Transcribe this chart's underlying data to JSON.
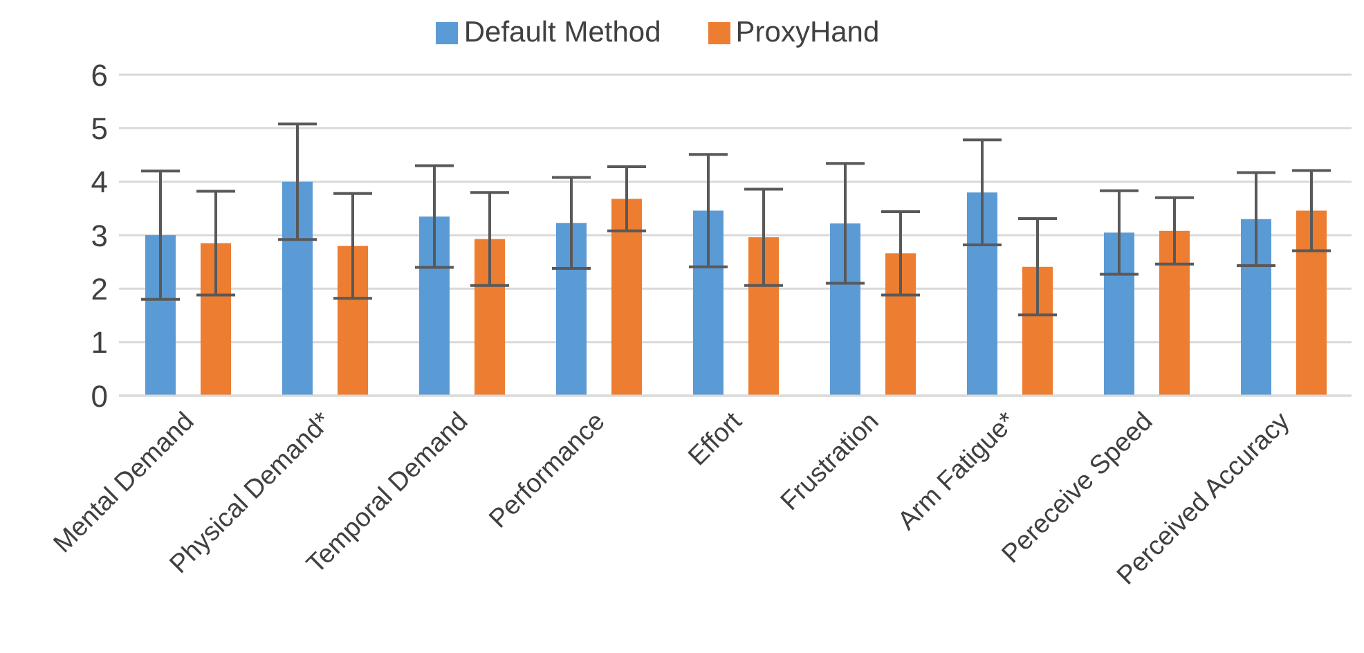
{
  "chart_data": {
    "type": "bar",
    "categories": [
      "Mental Demand",
      "Physical Demand*",
      "Temporal Demand",
      "Performance",
      "Effort",
      "Frustration",
      "Arm Fatigue*",
      "Pereceive Speed",
      "Perceived Accuracy"
    ],
    "series": [
      {
        "name": "Default Method",
        "color": "#5b9bd5",
        "values": [
          3.0,
          4.0,
          3.35,
          3.23,
          3.46,
          3.22,
          3.8,
          3.05,
          3.3
        ],
        "errors": [
          1.2,
          1.08,
          0.95,
          0.85,
          1.05,
          1.12,
          0.98,
          0.78,
          0.87
        ]
      },
      {
        "name": "ProxyHand",
        "color": "#ed7d31",
        "values": [
          2.85,
          2.8,
          2.93,
          3.68,
          2.96,
          2.66,
          2.41,
          3.08,
          3.46
        ],
        "errors": [
          0.97,
          0.98,
          0.87,
          0.6,
          0.9,
          0.78,
          0.9,
          0.62,
          0.75
        ]
      }
    ],
    "ylim": [
      0,
      6
    ],
    "yticks": [
      0,
      1,
      2,
      3,
      4,
      5,
      6
    ],
    "grid": "y",
    "legend": "top"
  }
}
